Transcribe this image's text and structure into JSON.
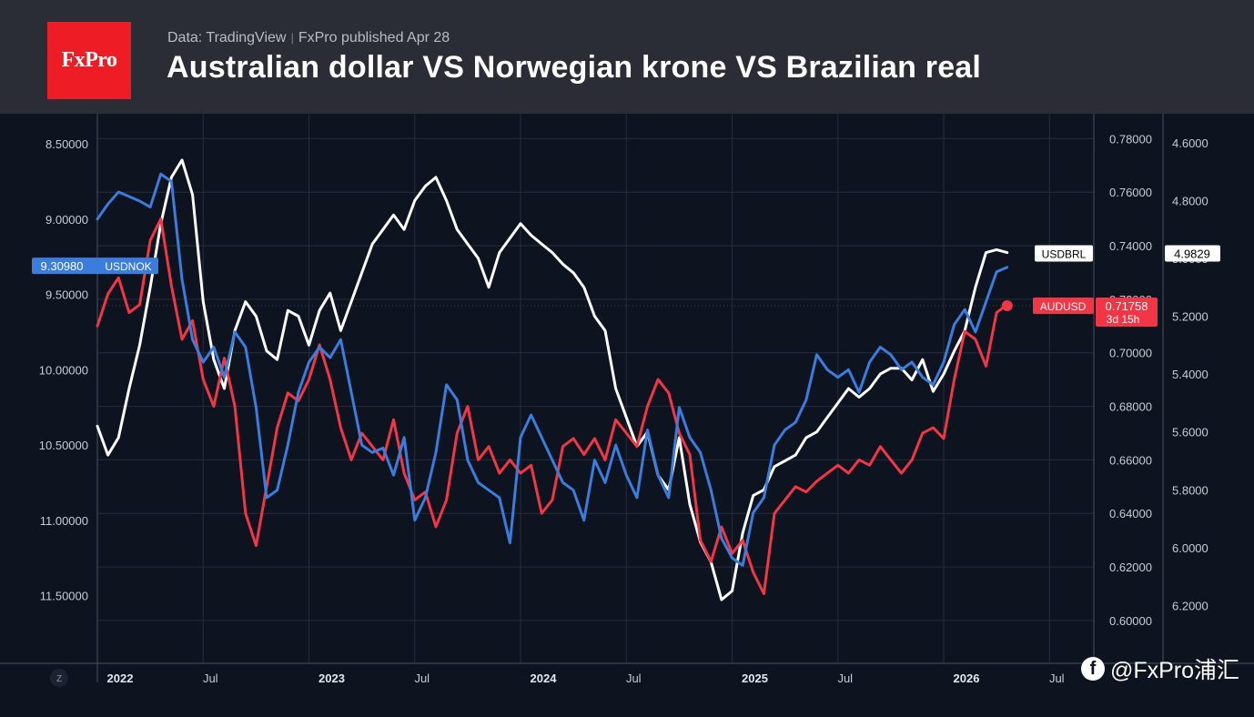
{
  "header": {
    "logo_text": "FxPro",
    "source": "Data: TradingView",
    "published": "FxPro published Apr 28",
    "title": "Australian dollar VS Norwegian krone VS Brazilian real"
  },
  "watermark": {
    "icon": "facebook-icon",
    "text": "@FxPro浦汇"
  },
  "colors": {
    "usdnok": "#3b7ddd",
    "audusd": "#f23645",
    "usdbrl": "#ffffff",
    "background": "#0e1320",
    "header": "#2a2d36",
    "grid": "#262c3c"
  },
  "chart_data": {
    "type": "line",
    "title": "Australian dollar VS Norwegian krone VS Brazilian real",
    "grid": true,
    "x_ticks": [
      "2022",
      "Jul",
      "2023",
      "Jul",
      "2024",
      "Jul",
      "2025",
      "Jul",
      "2026",
      "Jul"
    ],
    "axis_corner_label": "Z",
    "axes": {
      "left": {
        "ticks": [
          "8.50000",
          "9.00000",
          "9.50000",
          "10.00000",
          "10.50000",
          "11.00000",
          "11.50000"
        ],
        "range": [
          8.3,
          11.95
        ],
        "inverted": true
      },
      "middle": {
        "ticks": [
          "0.78000",
          "0.76000",
          "0.74000",
          "0.72000",
          "0.70000",
          "0.68000",
          "0.66000",
          "0.64000",
          "0.62000",
          "0.60000"
        ],
        "range": [
          0.584,
          0.7893
        ]
      },
      "right": {
        "ticks": [
          "4.6000",
          "4.8000",
          "5.0000",
          "5.2000",
          "5.4000",
          "5.6000",
          "5.8000",
          "6.0000",
          "6.2000"
        ],
        "range": [
          4.5,
          6.4
        ],
        "inverted": true
      }
    },
    "series": [
      {
        "name": "USDBRL",
        "axis": "right",
        "last_value": "4.9829",
        "x": [
          2022.0,
          2022.05,
          2022.1,
          2022.15,
          2022.2,
          2022.25,
          2022.3,
          2022.35,
          2022.4,
          2022.45,
          2022.5,
          2022.55,
          2022.6,
          2022.65,
          2022.7,
          2022.75,
          2022.8,
          2022.85,
          2022.9,
          2022.95,
          2023.0,
          2023.05,
          2023.1,
          2023.15,
          2023.2,
          2023.25,
          2023.3,
          2023.35,
          2023.4,
          2023.45,
          2023.5,
          2023.55,
          2023.6,
          2023.65,
          2023.7,
          2023.75,
          2023.8,
          2023.85,
          2023.9,
          2023.95,
          2024.0,
          2024.05,
          2024.1,
          2024.15,
          2024.2,
          2024.25,
          2024.3,
          2024.35,
          2024.4,
          2024.45,
          2024.5,
          2024.55,
          2024.6,
          2024.65,
          2024.7,
          2024.75,
          2024.8,
          2024.85,
          2024.9,
          2024.95,
          2025.0,
          2025.05,
          2025.1,
          2025.15,
          2025.2,
          2025.25,
          2025.3,
          2025.35,
          2025.4,
          2025.45,
          2025.5,
          2025.55,
          2025.6,
          2025.65,
          2025.7,
          2025.75,
          2025.8,
          2025.85,
          2025.9,
          2025.95,
          2026.0,
          2026.05,
          2026.1,
          2026.15,
          2026.2,
          2026.25,
          2026.3
        ],
        "values": [
          5.58,
          5.68,
          5.62,
          5.45,
          5.3,
          5.1,
          4.88,
          4.72,
          4.66,
          4.78,
          5.15,
          5.35,
          5.45,
          5.25,
          5.15,
          5.2,
          5.32,
          5.35,
          5.18,
          5.2,
          5.3,
          5.18,
          5.12,
          5.25,
          5.15,
          5.05,
          4.95,
          4.9,
          4.85,
          4.9,
          4.8,
          4.75,
          4.72,
          4.8,
          4.9,
          4.95,
          5.0,
          5.1,
          4.98,
          4.93,
          4.88,
          4.92,
          4.95,
          4.98,
          5.02,
          5.05,
          5.1,
          5.2,
          5.25,
          5.45,
          5.55,
          5.65,
          5.6,
          5.75,
          5.8,
          5.62,
          5.85,
          5.98,
          6.05,
          6.18,
          6.15,
          5.95,
          5.82,
          5.8,
          5.72,
          5.7,
          5.68,
          5.62,
          5.6,
          5.55,
          5.5,
          5.45,
          5.48,
          5.45,
          5.4,
          5.38,
          5.38,
          5.42,
          5.35,
          5.46,
          5.4,
          5.32,
          5.25,
          5.1,
          4.98,
          4.97,
          4.98
        ]
      },
      {
        "name": "USDNOK",
        "axis": "left",
        "last_value": "9.30980",
        "x": [
          2022.0,
          2022.05,
          2022.1,
          2022.15,
          2022.2,
          2022.25,
          2022.3,
          2022.35,
          2022.4,
          2022.45,
          2022.5,
          2022.55,
          2022.6,
          2022.65,
          2022.7,
          2022.75,
          2022.8,
          2022.85,
          2022.9,
          2022.95,
          2023.0,
          2023.05,
          2023.1,
          2023.15,
          2023.2,
          2023.25,
          2023.3,
          2023.35,
          2023.4,
          2023.45,
          2023.5,
          2023.55,
          2023.6,
          2023.65,
          2023.7,
          2023.75,
          2023.8,
          2023.85,
          2023.9,
          2023.95,
          2024.0,
          2024.05,
          2024.1,
          2024.15,
          2024.2,
          2024.25,
          2024.3,
          2024.35,
          2024.4,
          2024.45,
          2024.5,
          2024.55,
          2024.6,
          2024.65,
          2024.7,
          2024.75,
          2024.8,
          2024.85,
          2024.9,
          2024.95,
          2025.0,
          2025.05,
          2025.1,
          2025.15,
          2025.2,
          2025.25,
          2025.3,
          2025.35,
          2025.4,
          2025.45,
          2025.5,
          2025.55,
          2025.6,
          2025.65,
          2025.7,
          2025.75,
          2025.8,
          2025.85,
          2025.9,
          2025.95,
          2026.0,
          2026.05,
          2026.1,
          2026.15,
          2026.2,
          2026.25,
          2026.3
        ],
        "values": [
          9.0,
          8.9,
          8.82,
          8.85,
          8.88,
          8.92,
          8.7,
          8.75,
          9.4,
          9.8,
          9.95,
          9.85,
          10.05,
          9.75,
          9.85,
          10.25,
          10.85,
          10.8,
          10.5,
          10.15,
          9.95,
          9.85,
          9.92,
          9.8,
          10.15,
          10.5,
          10.55,
          10.52,
          10.7,
          10.45,
          11.0,
          10.85,
          10.55,
          10.1,
          10.2,
          10.6,
          10.75,
          10.8,
          10.85,
          11.15,
          10.45,
          10.3,
          10.45,
          10.6,
          10.75,
          10.8,
          11.0,
          10.6,
          10.75,
          10.5,
          10.7,
          10.85,
          10.4,
          10.7,
          10.85,
          10.25,
          10.45,
          10.55,
          10.8,
          11.12,
          11.25,
          11.3,
          10.95,
          10.85,
          10.5,
          10.4,
          10.35,
          10.2,
          9.9,
          10.0,
          10.05,
          10.0,
          10.15,
          9.95,
          9.85,
          9.9,
          10.0,
          9.95,
          10.05,
          10.1,
          9.95,
          9.7,
          9.6,
          9.75,
          9.55,
          9.35,
          9.32
        ]
      },
      {
        "name": "AUDUSD",
        "axis": "middle",
        "last_value": "0.71758",
        "note": "3d 15h",
        "x": [
          2022.0,
          2022.05,
          2022.1,
          2022.15,
          2022.2,
          2022.25,
          2022.3,
          2022.35,
          2022.4,
          2022.45,
          2022.5,
          2022.55,
          2022.6,
          2022.65,
          2022.7,
          2022.75,
          2022.8,
          2022.85,
          2022.9,
          2022.95,
          2023.0,
          2023.05,
          2023.1,
          2023.15,
          2023.2,
          2023.25,
          2023.3,
          2023.35,
          2023.4,
          2023.45,
          2023.5,
          2023.55,
          2023.6,
          2023.65,
          2023.7,
          2023.75,
          2023.8,
          2023.85,
          2023.9,
          2023.95,
          2024.0,
          2024.05,
          2024.1,
          2024.15,
          2024.2,
          2024.25,
          2024.3,
          2024.35,
          2024.4,
          2024.45,
          2024.5,
          2024.55,
          2024.6,
          2024.65,
          2024.7,
          2024.75,
          2024.8,
          2024.85,
          2024.9,
          2024.95,
          2025.0,
          2025.05,
          2025.1,
          2025.15,
          2025.2,
          2025.25,
          2025.3,
          2025.35,
          2025.4,
          2025.45,
          2025.5,
          2025.55,
          2025.6,
          2025.65,
          2025.7,
          2025.75,
          2025.8,
          2025.85,
          2025.9,
          2025.95,
          2026.0,
          2026.05,
          2026.1,
          2026.15,
          2026.2,
          2026.25,
          2026.3
        ],
        "values": [
          0.71,
          0.722,
          0.728,
          0.715,
          0.718,
          0.742,
          0.75,
          0.725,
          0.705,
          0.712,
          0.69,
          0.68,
          0.698,
          0.68,
          0.64,
          0.628,
          0.65,
          0.672,
          0.685,
          0.682,
          0.69,
          0.703,
          0.69,
          0.672,
          0.66,
          0.67,
          0.665,
          0.66,
          0.675,
          0.655,
          0.645,
          0.648,
          0.635,
          0.645,
          0.67,
          0.68,
          0.66,
          0.665,
          0.655,
          0.66,
          0.655,
          0.658,
          0.64,
          0.645,
          0.665,
          0.668,
          0.662,
          0.668,
          0.66,
          0.675,
          0.67,
          0.665,
          0.68,
          0.69,
          0.685,
          0.67,
          0.662,
          0.63,
          0.622,
          0.635,
          0.625,
          0.63,
          0.618,
          0.61,
          0.64,
          0.645,
          0.65,
          0.648,
          0.652,
          0.655,
          0.658,
          0.655,
          0.66,
          0.658,
          0.665,
          0.66,
          0.655,
          0.66,
          0.67,
          0.672,
          0.668,
          0.69,
          0.708,
          0.705,
          0.695,
          0.715,
          0.718
        ]
      }
    ]
  }
}
